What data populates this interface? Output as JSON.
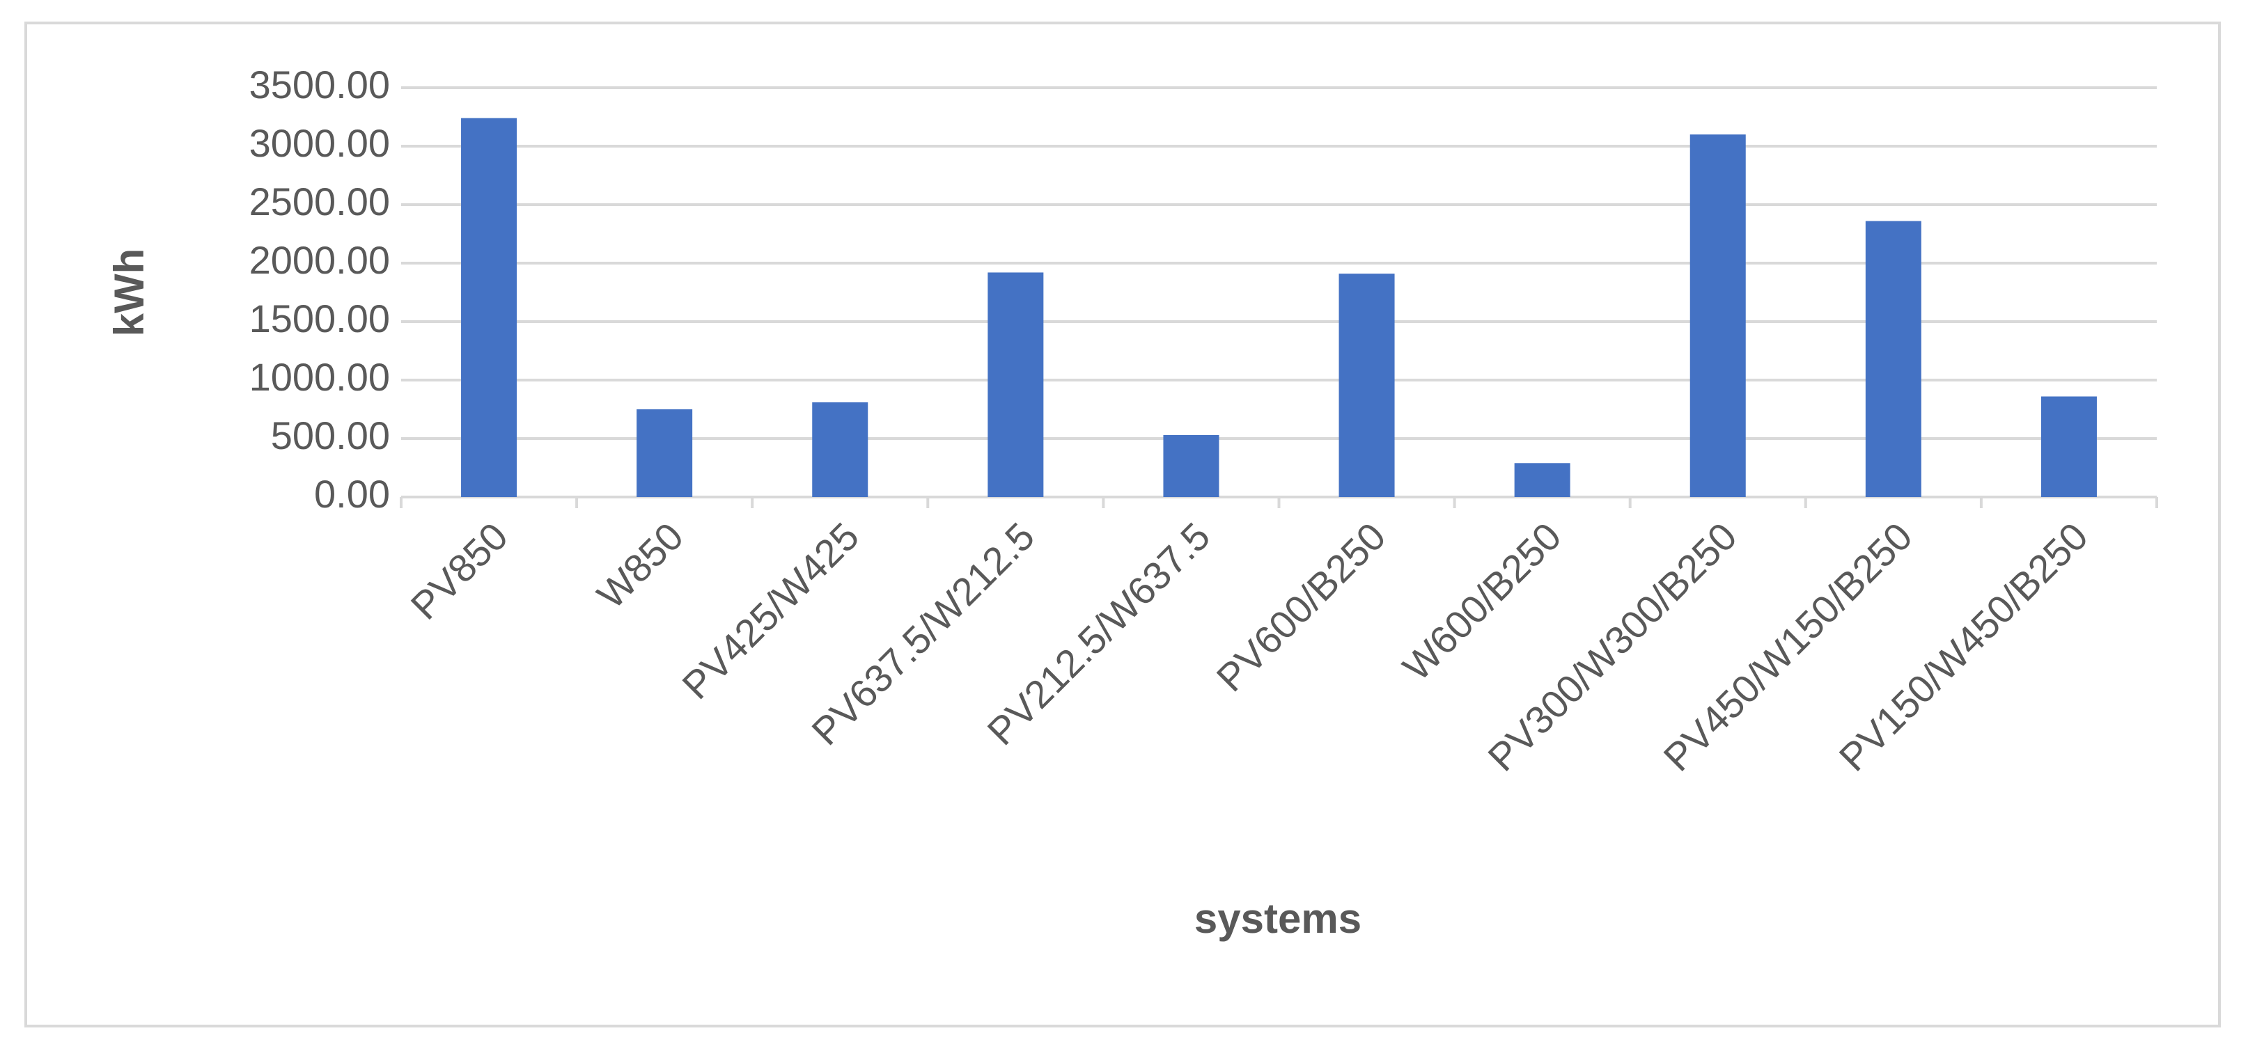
{
  "chart_data": {
    "type": "bar",
    "x_label": "systems",
    "y_label": "kWh",
    "categories": [
      "PV850",
      "W850",
      "PV425/W425",
      "PV637.5/W212.5",
      "PV212.5/W637.5",
      "PV600/B250",
      "W600/B250",
      "PV300/W300/B250",
      "PV450/W150/B250",
      "PV150/W450/B250"
    ],
    "values": [
      3240,
      750,
      810,
      1920,
      530,
      1910,
      290,
      3100,
      2360,
      860
    ],
    "color": "#4472c4",
    "ylim": [
      0,
      3500
    ],
    "yticks": [
      {
        "value": 0,
        "label": "0.00"
      },
      {
        "value": 500,
        "label": "500.00"
      },
      {
        "value": 1000,
        "label": "1000.00"
      },
      {
        "value": 1500,
        "label": "1500.00"
      },
      {
        "value": 2000,
        "label": "2000.00"
      },
      {
        "value": 2500,
        "label": "2500.00"
      },
      {
        "value": 3000,
        "label": "3000.00"
      },
      {
        "value": 3500,
        "label": "3500.00"
      }
    ],
    "grid": true
  }
}
